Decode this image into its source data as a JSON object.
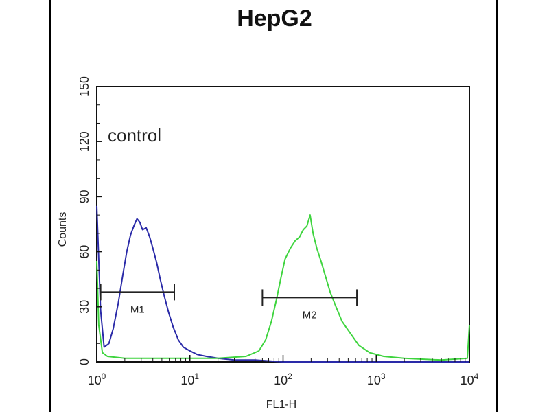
{
  "chart_data": {
    "type": "line",
    "title": "HepG2",
    "xlabel": "FL1-H",
    "ylabel": "Counts",
    "x_scale": "log",
    "xlim": [
      1,
      10000
    ],
    "ylim": [
      0,
      150
    ],
    "x_ticks": [
      {
        "value": 1,
        "base": "10",
        "exp": "0"
      },
      {
        "value": 10,
        "base": "10",
        "exp": "1"
      },
      {
        "value": 100,
        "base": "10",
        "exp": "2"
      },
      {
        "value": 1000,
        "base": "10",
        "exp": "3"
      },
      {
        "value": 10000,
        "base": "10",
        "exp": "4"
      }
    ],
    "y_ticks": [
      0,
      30,
      60,
      90,
      120,
      150
    ],
    "annotation": "control",
    "markers": [
      {
        "label": "M1",
        "start": 1.1,
        "end": 6.8,
        "y": 38
      },
      {
        "label": "M2",
        "start": 60,
        "end": 620,
        "y": 35
      }
    ],
    "series": [
      {
        "color": "#2a2aa8",
        "x": [
          1,
          1.1,
          1.2,
          1.35,
          1.5,
          1.7,
          1.9,
          2.1,
          2.3,
          2.5,
          2.7,
          2.9,
          3.1,
          3.4,
          3.7,
          4.0,
          4.4,
          4.8,
          5.3,
          5.9,
          6.6,
          7.5,
          8.5,
          10,
          12,
          15,
          20,
          30,
          50,
          100,
          1000,
          10000
        ],
        "y": [
          85,
          28,
          8,
          10,
          18,
          32,
          47,
          60,
          69,
          74,
          78,
          76,
          72,
          73,
          68,
          62,
          54,
          45,
          36,
          27,
          19,
          12,
          8,
          6,
          4,
          3,
          2,
          1,
          1,
          0,
          0,
          0
        ]
      },
      {
        "color": "#3ed43e",
        "x": [
          1,
          1.05,
          1.15,
          1.3,
          2,
          5,
          10,
          20,
          40,
          55,
          65,
          75,
          85,
          95,
          105,
          120,
          135,
          150,
          165,
          180,
          195,
          210,
          230,
          255,
          280,
          320,
          370,
          430,
          520,
          650,
          850,
          1200,
          2000,
          5000,
          9500,
          10000
        ],
        "y": [
          55,
          20,
          5,
          3,
          2,
          2,
          2,
          2,
          3,
          6,
          12,
          22,
          34,
          46,
          56,
          62,
          66,
          68,
          72,
          74,
          80,
          70,
          62,
          55,
          48,
          38,
          30,
          22,
          16,
          9,
          5,
          3,
          2,
          1,
          2,
          20
        ]
      }
    ]
  }
}
